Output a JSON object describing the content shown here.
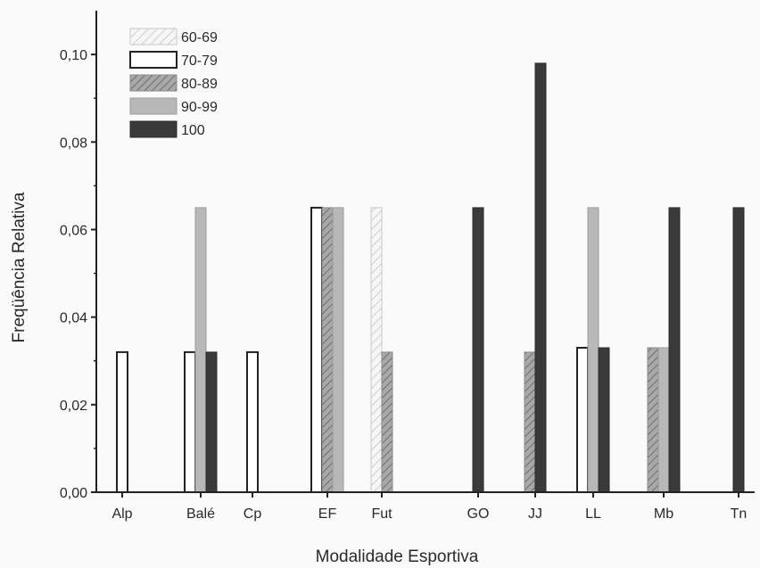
{
  "chart_data": {
    "type": "bar",
    "xlabel": "Modalidade Esportiva",
    "ylabel": "Freqüência Relativa",
    "ylim": [
      0,
      0.11
    ],
    "yticks": [
      "0,00",
      "0,02",
      "0,04",
      "0,06",
      "0,08",
      "0,10"
    ],
    "ytick_values": [
      0,
      0.02,
      0.04,
      0.06,
      0.08,
      0.1
    ],
    "categories": [
      "Alp",
      "Balé",
      "Cp",
      "EF",
      "Fut",
      "GO",
      "JJ",
      "LL",
      "Mb",
      "Tn"
    ],
    "legend_position": "top-left",
    "grid": false,
    "series": [
      {
        "name": "60-69",
        "pattern": "light-hatch",
        "color": "#f2f2f2",
        "values": [
          0,
          0,
          0,
          0,
          0.065,
          0,
          0,
          0,
          0,
          0
        ]
      },
      {
        "name": "70-79",
        "pattern": "white",
        "color": "#ffffff",
        "values": [
          0.032,
          0.032,
          0.032,
          0.065,
          0,
          0,
          0,
          0.033,
          0,
          0
        ]
      },
      {
        "name": "80-89",
        "pattern": "dark-hatch",
        "color": "#9e9e9e",
        "values": [
          0,
          0,
          0,
          0.065,
          0.032,
          0,
          0.032,
          0,
          0.033,
          0
        ]
      },
      {
        "name": "90-99",
        "pattern": "light-gray",
        "color": "#b8b8b8",
        "values": [
          0,
          0.065,
          0,
          0.065,
          0,
          0,
          0,
          0.065,
          0.033,
          0
        ]
      },
      {
        "name": "100",
        "pattern": "dark-gray",
        "color": "#3a3a3a",
        "values": [
          0,
          0.032,
          0,
          0,
          0,
          0.065,
          0.098,
          0.033,
          0.065,
          0.065
        ]
      }
    ]
  }
}
